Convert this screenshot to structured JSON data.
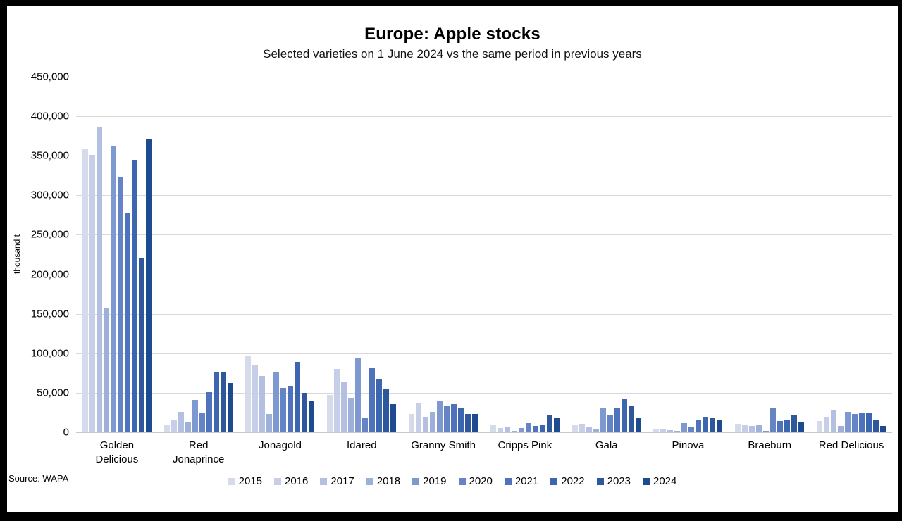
{
  "title": "Europe: Apple stocks",
  "subtitle": "Selected varieties on 1 June 2024 vs the same period in previous years",
  "source_note": "Source: WAPA",
  "chart_data": {
    "type": "bar",
    "title": "Europe: Apple stocks",
    "subtitle": "Selected varieties on 1 June 2024 vs the same period in previous years",
    "ylabel": "thousand t",
    "xlabel": "",
    "ylim": [
      0,
      450000
    ],
    "ytick_interval": 50000,
    "grid": true,
    "legend_position": "bottom",
    "categories": [
      "Golden Delicious",
      "Red Jonaprince",
      "Jonagold",
      "Idared",
      "Granny Smith",
      "Cripps Pink",
      "Gala",
      "Pinova",
      "Braeburn",
      "Red Delicious"
    ],
    "series": [
      {
        "name": "2015",
        "color": "#D6DBEC",
        "values": [
          358000,
          10000,
          96000,
          47000,
          23000,
          9000,
          10000,
          4000,
          11000,
          14000
        ]
      },
      {
        "name": "2016",
        "color": "#C7CFE8",
        "values": [
          351000,
          15000,
          86000,
          80000,
          37000,
          5000,
          11000,
          4000,
          9000,
          20000
        ]
      },
      {
        "name": "2017",
        "color": "#B3C0E2",
        "values": [
          386000,
          26000,
          71000,
          64000,
          20000,
          7000,
          7000,
          3000,
          8000,
          28000
        ]
      },
      {
        "name": "2018",
        "color": "#9DB0D9",
        "values": [
          158000,
          13000,
          23000,
          44000,
          26000,
          2000,
          4000,
          2000,
          10000,
          8000
        ]
      },
      {
        "name": "2019",
        "color": "#7E98D0",
        "values": [
          363000,
          41000,
          76000,
          94000,
          40000,
          5000,
          30000,
          12000,
          2000,
          26000
        ]
      },
      {
        "name": "2020",
        "color": "#6484C5",
        "values": [
          323000,
          25000,
          56000,
          19000,
          33000,
          12000,
          21000,
          6000,
          30000,
          23000
        ]
      },
      {
        "name": "2021",
        "color": "#4E73BC",
        "values": [
          278000,
          51000,
          59000,
          82000,
          36000,
          8000,
          30000,
          15000,
          14000,
          24000
        ]
      },
      {
        "name": "2022",
        "color": "#3D66B0",
        "values": [
          345000,
          77000,
          89000,
          68000,
          31000,
          9000,
          42000,
          20000,
          16000,
          24000
        ]
      },
      {
        "name": "2023",
        "color": "#2E579C",
        "values": [
          220000,
          77000,
          50000,
          54000,
          23000,
          22000,
          33000,
          18000,
          22000,
          15000
        ]
      },
      {
        "name": "2024",
        "color": "#1E4B8F",
        "values": [
          372000,
          62000,
          40000,
          36000,
          23000,
          19000,
          19000,
          16000,
          13000,
          8000
        ]
      }
    ]
  }
}
